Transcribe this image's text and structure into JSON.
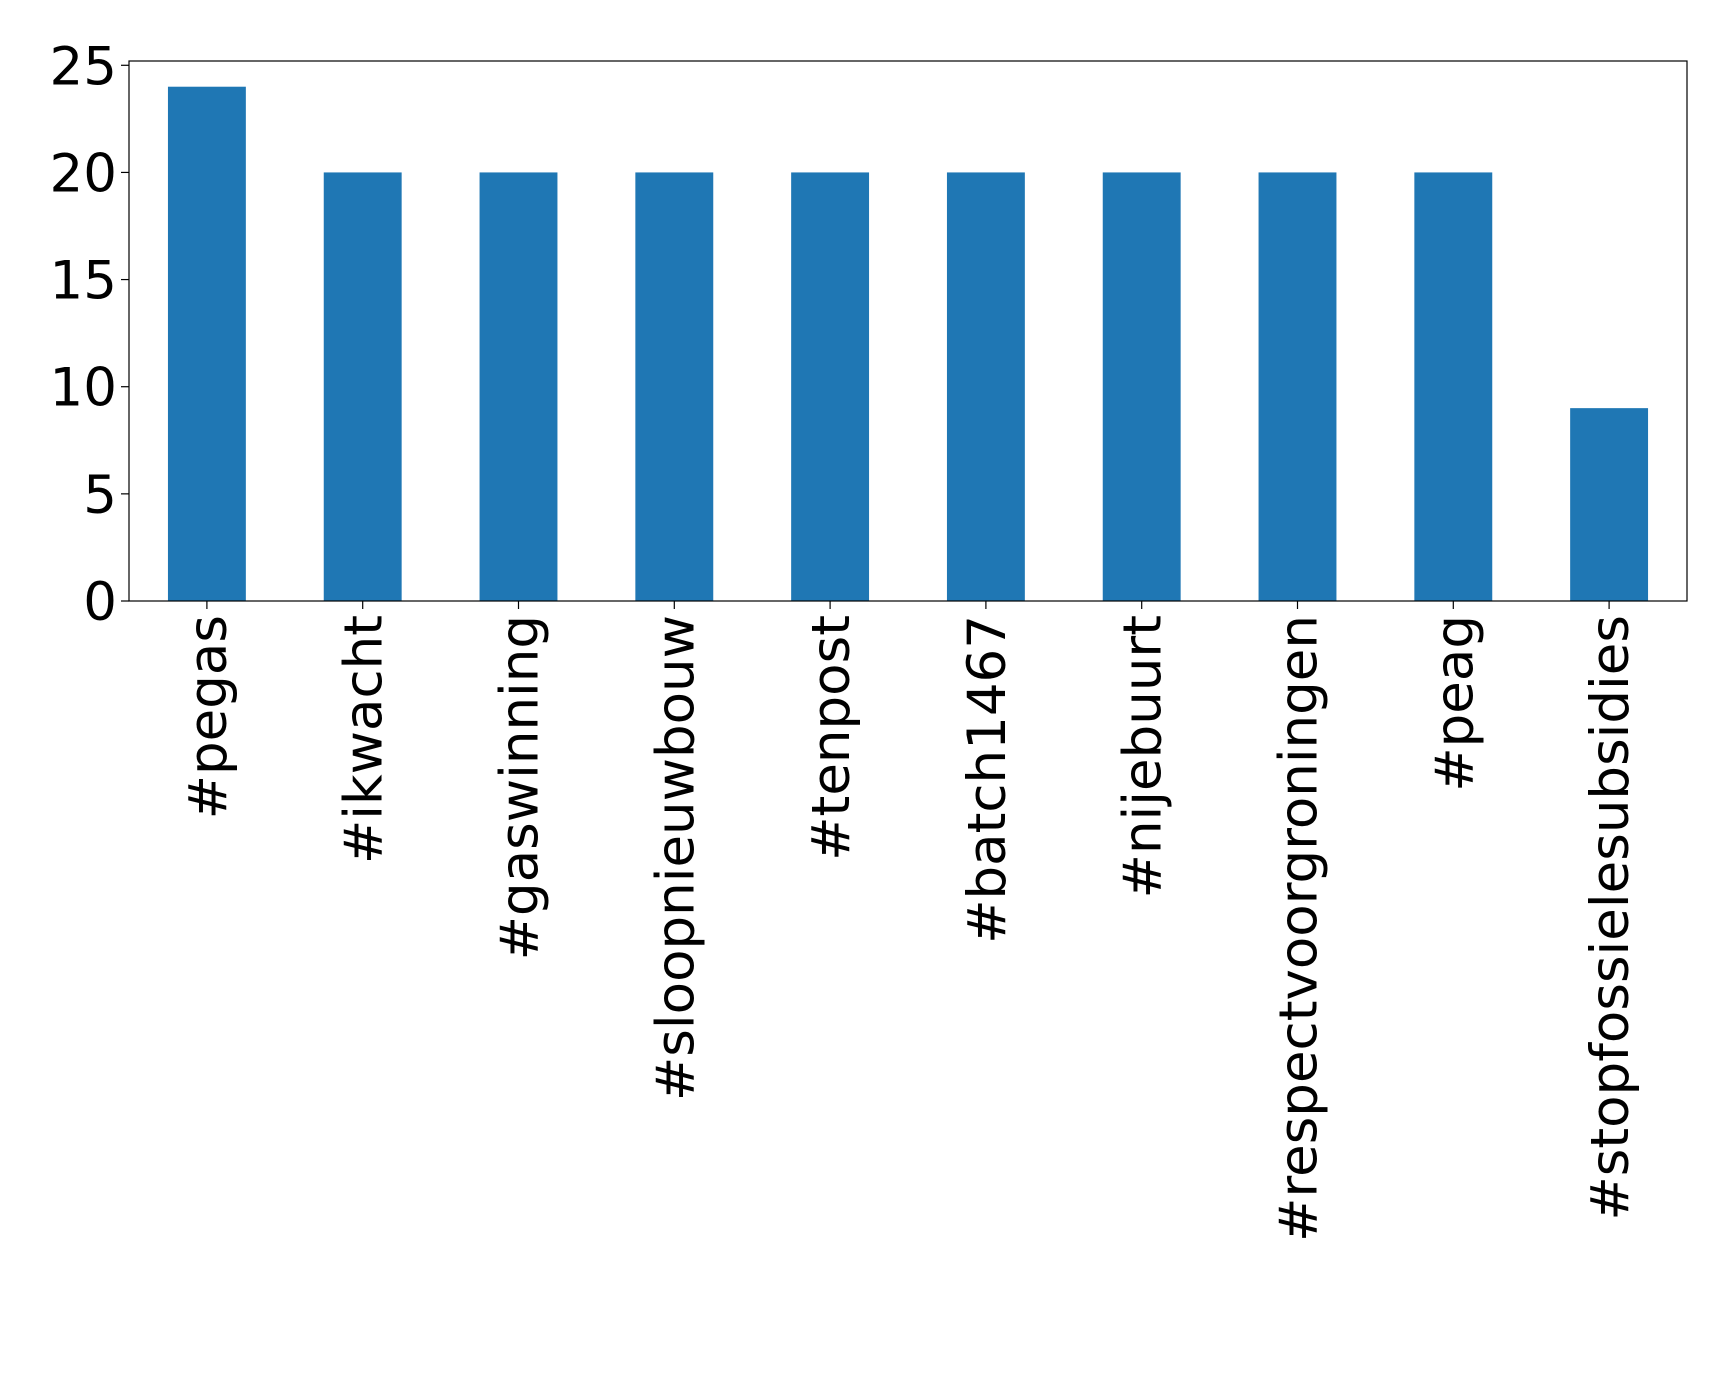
{
  "chart_data": {
    "type": "bar",
    "categories": [
      "#pegas",
      "#ikwacht",
      "#gaswinning",
      "#sloopnieuwbouw",
      "#tenpost",
      "#batch1467",
      "#nijebuurt",
      "#respectvoorgroningen",
      "#peag",
      "#stopfossielesubsidies"
    ],
    "values": [
      24,
      20,
      20,
      20,
      20,
      20,
      20,
      20,
      20,
      9
    ],
    "color": "#1f77b4",
    "ylim": [
      0,
      25.2
    ],
    "yticks": [
      0,
      5,
      10,
      15,
      20,
      25
    ],
    "grid": false
  }
}
